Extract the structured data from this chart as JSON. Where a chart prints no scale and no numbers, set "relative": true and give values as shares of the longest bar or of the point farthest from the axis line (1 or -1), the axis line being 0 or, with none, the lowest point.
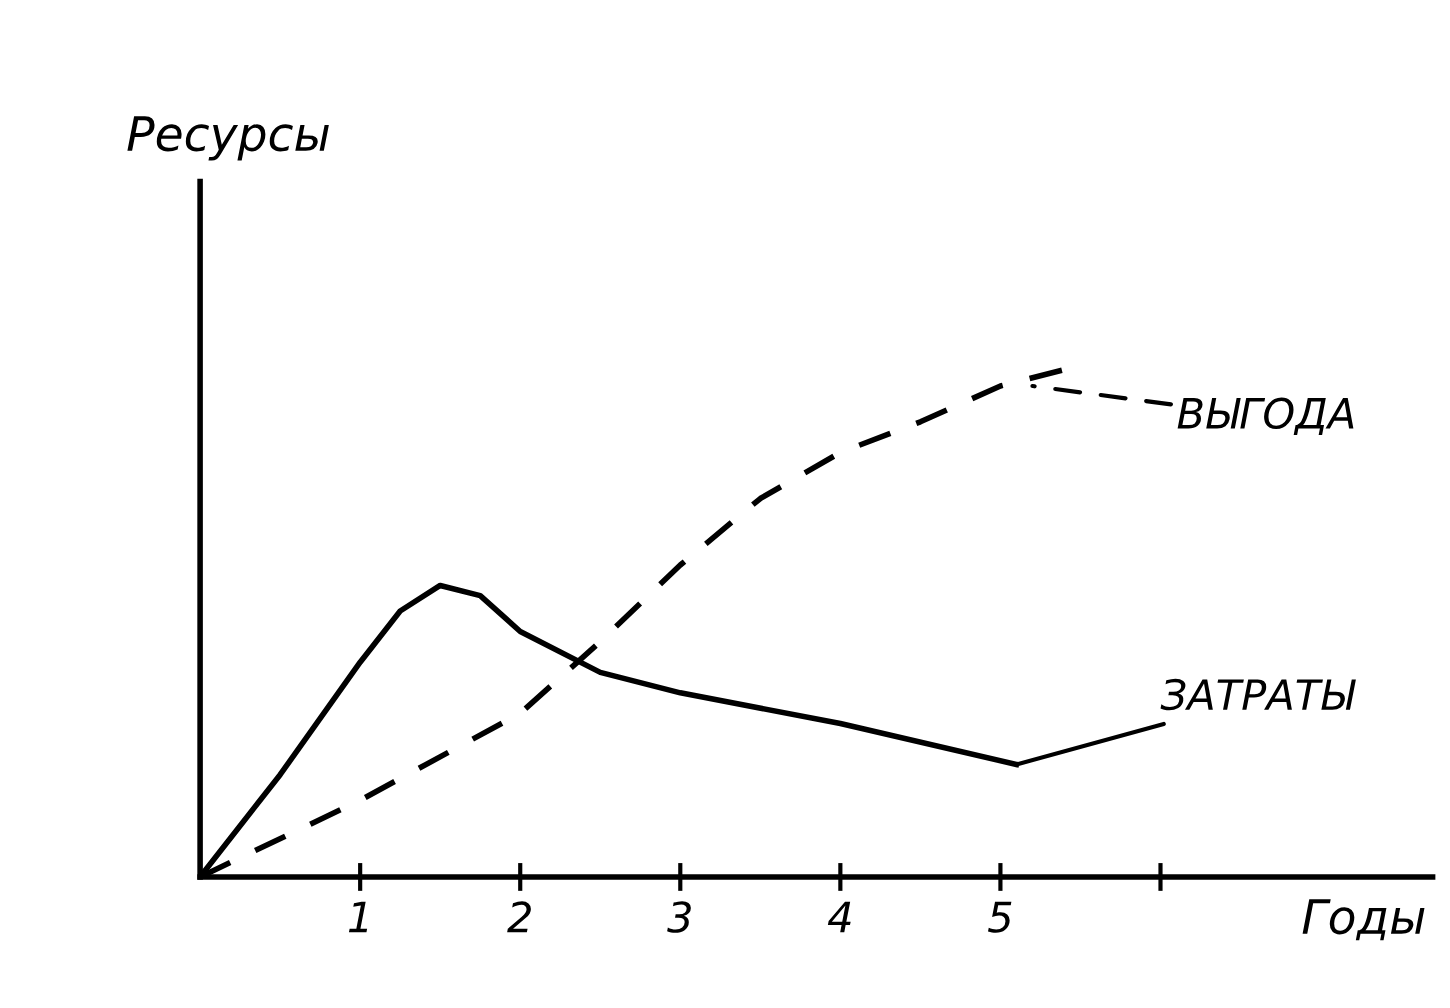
{
  "chart_data": {
    "type": "line",
    "relative": true,
    "xlabel": "Годы",
    "ylabel": "Ресурсы",
    "xlim": [
      0,
      7.7
    ],
    "xticks": [
      1,
      2,
      3,
      4,
      5,
      {
        "value": 6,
        "label": null
      }
    ],
    "series": [
      {
        "name": "ВЫГОДА",
        "color": "#000000",
        "line_style": "dashed",
        "x": [
          0,
          1,
          2,
          2.5,
          3,
          3.5,
          4,
          4.5,
          5,
          5.5
        ],
        "values": [
          0,
          0.15,
          0.32,
          0.46,
          0.61,
          0.74,
          0.83,
          0.89,
          0.96,
          1
        ]
      },
      {
        "name": "ЗАТРАТЫ",
        "color": "#000000",
        "line_style": "solid",
        "x": [
          0,
          0.5,
          1,
          1.25,
          1.5,
          1.75,
          2,
          2.5,
          3,
          4,
          5.1
        ],
        "values": [
          0,
          0.2,
          0.42,
          0.52,
          0.57,
          0.55,
          0.48,
          0.4,
          0.36,
          0.3,
          0.22
        ]
      }
    ]
  }
}
